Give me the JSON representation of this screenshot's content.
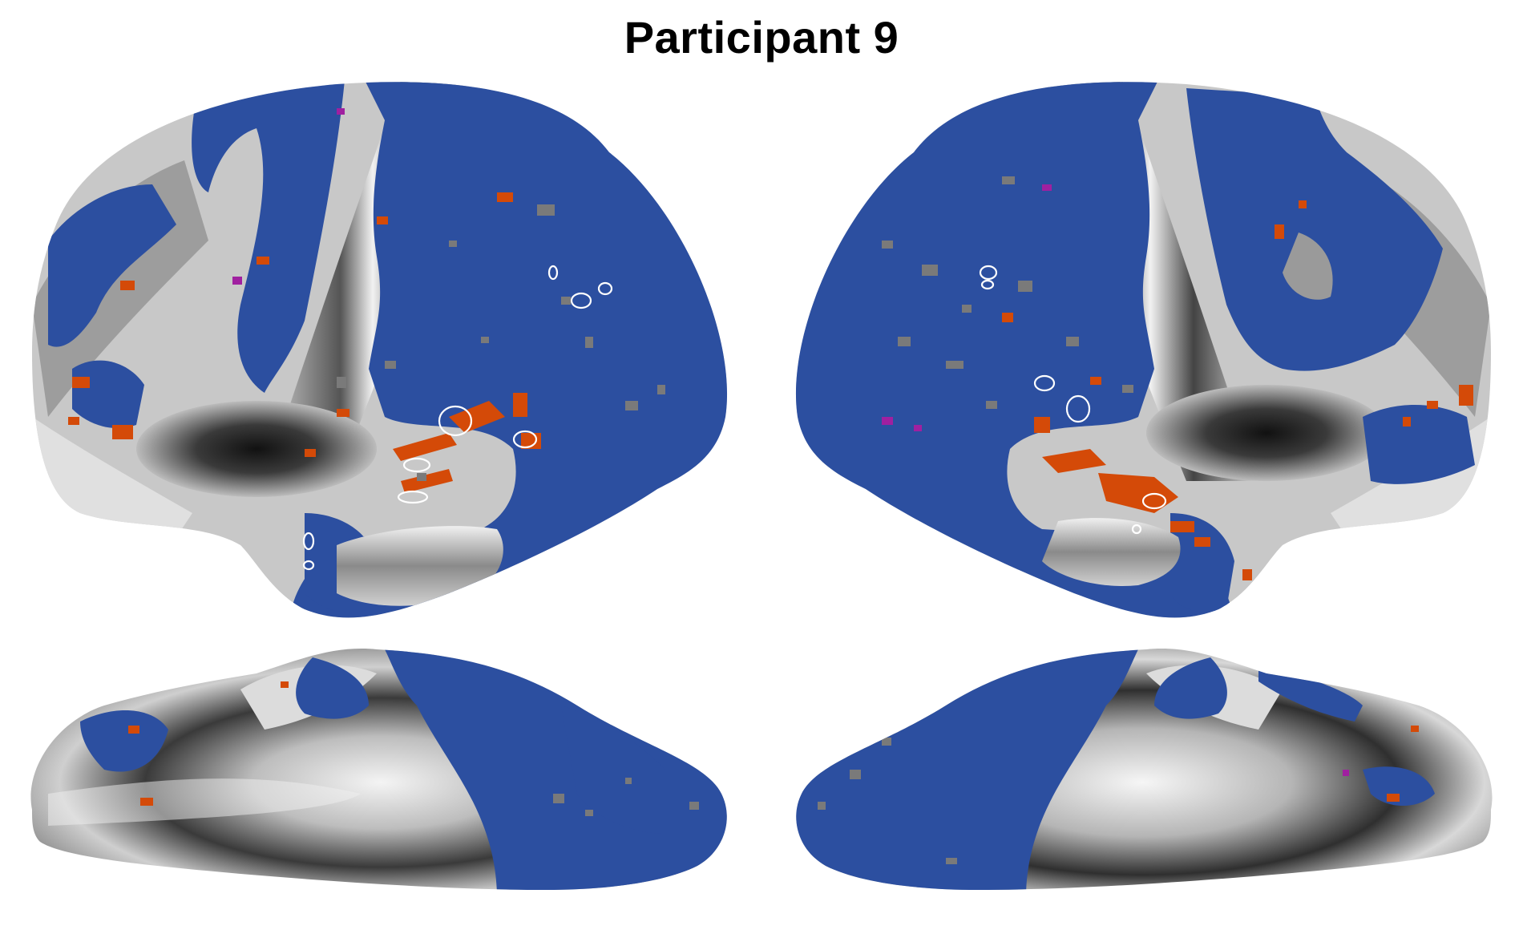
{
  "figure": {
    "title": "Participant 9"
  },
  "colors": {
    "background": "#ffffff",
    "cortex_blue": "#2c4fa0",
    "activation_orange": "#d44a08",
    "activation_magenta": "#a020a0",
    "activation_pink": "#f0a0a0",
    "outline_white": "#ffffff",
    "sulcus_dark": "#2a2a2a",
    "gyrus_light": "#e8e8e8"
  },
  "views": [
    {
      "name": "left-lateral"
    },
    {
      "name": "right-lateral"
    },
    {
      "name": "left-medial"
    },
    {
      "name": "right-medial"
    }
  ]
}
